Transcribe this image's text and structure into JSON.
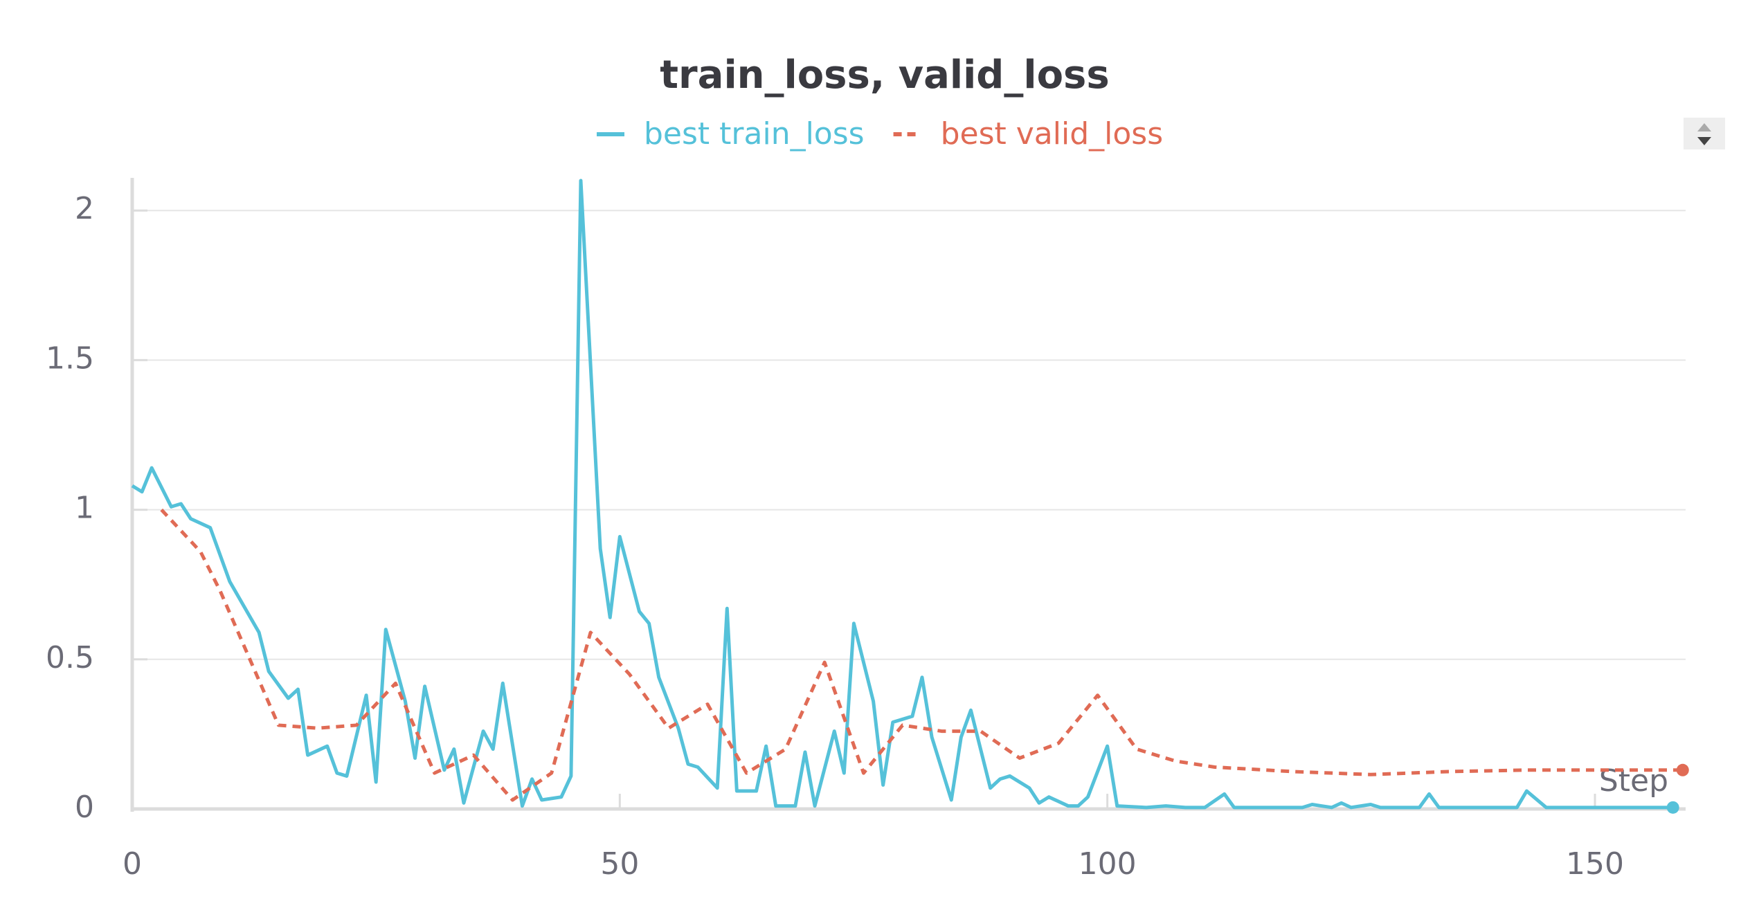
{
  "chart_data": {
    "type": "line",
    "title": "train_loss, valid_loss",
    "x_label": "Step",
    "xlim": [
      0,
      159.3
    ],
    "ylim": [
      0,
      2.1
    ],
    "xticks": [
      0,
      50,
      100,
      150
    ],
    "yticks": [
      0,
      0.5,
      1,
      1.5,
      2
    ],
    "grid": true,
    "series": [
      {
        "name": "best train_loss",
        "color": "#55c1d9",
        "dash": false,
        "x": [
          0,
          1,
          2,
          4,
          5,
          6,
          8,
          10,
          13,
          14,
          16,
          17,
          18,
          20,
          21,
          22,
          24,
          25,
          26,
          28,
          29,
          30,
          32,
          33,
          34,
          36,
          37,
          38,
          40,
          41,
          42,
          44,
          45,
          46,
          48,
          49,
          50,
          52,
          53,
          54,
          56,
          57,
          58,
          60,
          61,
          62,
          64,
          65,
          66,
          68,
          69,
          70,
          72,
          73,
          74,
          76,
          77,
          78,
          80,
          81,
          82,
          84,
          85,
          86,
          88,
          89,
          90,
          92,
          93,
          94,
          96,
          97,
          98,
          100,
          101,
          104,
          106,
          108,
          110,
          112,
          113,
          118,
          120,
          121,
          123,
          124,
          125,
          127,
          128,
          132,
          133,
          134,
          142,
          143,
          145,
          150,
          158
        ],
        "values": [
          1.08,
          1.06,
          1.14,
          1.01,
          1.02,
          0.97,
          0.94,
          0.76,
          0.59,
          0.46,
          0.37,
          0.4,
          0.18,
          0.21,
          0.12,
          0.11,
          0.38,
          0.09,
          0.6,
          0.36,
          0.17,
          0.41,
          0.13,
          0.2,
          0.02,
          0.26,
          0.2,
          0.42,
          0.01,
          0.1,
          0.03,
          0.04,
          0.11,
          2.1,
          0.87,
          0.64,
          0.91,
          0.66,
          0.62,
          0.44,
          0.27,
          0.15,
          0.14,
          0.07,
          0.67,
          0.06,
          0.06,
          0.21,
          0.01,
          0.01,
          0.19,
          0.01,
          0.26,
          0.12,
          0.62,
          0.36,
          0.08,
          0.29,
          0.31,
          0.44,
          0.24,
          0.03,
          0.24,
          0.33,
          0.07,
          0.1,
          0.11,
          0.07,
          0.02,
          0.04,
          0.01,
          0.01,
          0.04,
          0.21,
          0.01,
          0.005,
          0.01,
          0.005,
          0.005,
          0.05,
          0.005,
          0.005,
          0.005,
          0.015,
          0.005,
          0.02,
          0.005,
          0.015,
          0.005,
          0.005,
          0.05,
          0.005,
          0.005,
          0.06,
          0.005,
          0.005,
          0.005
        ]
      },
      {
        "name": "best valid_loss",
        "color": "#e06b55",
        "dash": true,
        "x": [
          3,
          5,
          7,
          9,
          11,
          13,
          15,
          19,
          23,
          27,
          29,
          31,
          35,
          39,
          43,
          47,
          51,
          55,
          59,
          63,
          67,
          71,
          75,
          79,
          83,
          87,
          91,
          95,
          99,
          103,
          107,
          111,
          119,
          127,
          135,
          143,
          151,
          159
        ],
        "values": [
          1.0,
          0.93,
          0.86,
          0.73,
          0.58,
          0.43,
          0.28,
          0.27,
          0.28,
          0.42,
          0.27,
          0.12,
          0.18,
          0.03,
          0.12,
          0.59,
          0.45,
          0.27,
          0.35,
          0.12,
          0.2,
          0.49,
          0.12,
          0.28,
          0.26,
          0.26,
          0.17,
          0.22,
          0.38,
          0.2,
          0.16,
          0.14,
          0.125,
          0.115,
          0.125,
          0.13,
          0.13,
          0.13
        ]
      }
    ]
  }
}
